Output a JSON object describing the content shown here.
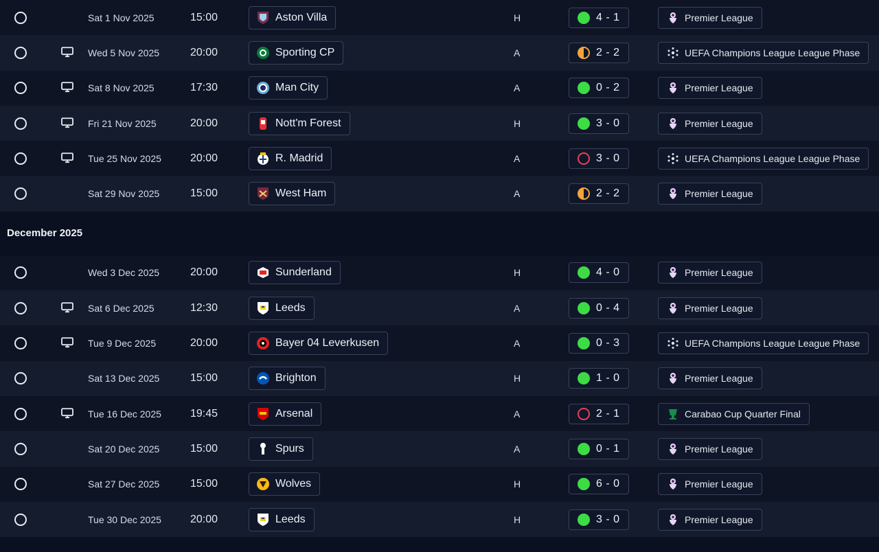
{
  "months": [
    {
      "title": ""
    },
    {
      "title": "December 2025"
    }
  ],
  "fixtures_nov": [
    {
      "tv": false,
      "date": "Sat 1 Nov 2025",
      "time": "15:00",
      "team": "Aston Villa",
      "crest": "villa",
      "venue": "H",
      "result": "win",
      "score": "4 - 1",
      "comp": "Premier League",
      "comp_icon": "pl"
    },
    {
      "tv": true,
      "date": "Wed 5 Nov 2025",
      "time": "20:00",
      "team": "Sporting CP",
      "crest": "sporting",
      "venue": "A",
      "result": "draw",
      "score": "2 - 2",
      "comp": "UEFA Champions League League Phase",
      "comp_icon": "ucl"
    },
    {
      "tv": true,
      "date": "Sat 8 Nov 2025",
      "time": "17:30",
      "team": "Man City",
      "crest": "city",
      "venue": "A",
      "result": "win",
      "score": "0 - 2",
      "comp": "Premier League",
      "comp_icon": "pl"
    },
    {
      "tv": true,
      "date": "Fri 21 Nov 2025",
      "time": "20:00",
      "team": "Nott'm Forest",
      "crest": "forest",
      "venue": "H",
      "result": "win",
      "score": "3 - 0",
      "comp": "Premier League",
      "comp_icon": "pl"
    },
    {
      "tv": true,
      "date": "Tue 25 Nov 2025",
      "time": "20:00",
      "team": "R. Madrid",
      "crest": "madrid",
      "venue": "A",
      "result": "loss",
      "score": "3 - 0",
      "comp": "UEFA Champions League League Phase",
      "comp_icon": "ucl"
    },
    {
      "tv": false,
      "date": "Sat 29 Nov 2025",
      "time": "15:00",
      "team": "West Ham",
      "crest": "westham",
      "venue": "A",
      "result": "draw",
      "score": "2 - 2",
      "comp": "Premier League",
      "comp_icon": "pl"
    }
  ],
  "fixtures_dec": [
    {
      "tv": false,
      "date": "Wed 3 Dec 2025",
      "time": "20:00",
      "team": "Sunderland",
      "crest": "sunderland",
      "venue": "H",
      "result": "win",
      "score": "4 - 0",
      "comp": "Premier League",
      "comp_icon": "pl"
    },
    {
      "tv": true,
      "date": "Sat 6 Dec 2025",
      "time": "12:30",
      "team": "Leeds",
      "crest": "leeds",
      "venue": "A",
      "result": "win",
      "score": "0 - 4",
      "comp": "Premier League",
      "comp_icon": "pl"
    },
    {
      "tv": true,
      "date": "Tue 9 Dec 2025",
      "time": "20:00",
      "team": "Bayer 04 Leverkusen",
      "crest": "leverkusen",
      "venue": "A",
      "result": "win",
      "score": "0 - 3",
      "comp": "UEFA Champions League League Phase",
      "comp_icon": "ucl"
    },
    {
      "tv": false,
      "date": "Sat 13 Dec 2025",
      "time": "15:00",
      "team": "Brighton",
      "crest": "brighton",
      "venue": "H",
      "result": "win",
      "score": "1 - 0",
      "comp": "Premier League",
      "comp_icon": "pl"
    },
    {
      "tv": true,
      "date": "Tue 16 Dec 2025",
      "time": "19:45",
      "team": "Arsenal",
      "crest": "arsenal",
      "venue": "A",
      "result": "loss",
      "score": "2 - 1",
      "comp": "Carabao Cup Quarter Final",
      "comp_icon": "carabao"
    },
    {
      "tv": false,
      "date": "Sat 20 Dec 2025",
      "time": "15:00",
      "team": "Spurs",
      "crest": "spurs",
      "venue": "A",
      "result": "win",
      "score": "0 - 1",
      "comp": "Premier League",
      "comp_icon": "pl"
    },
    {
      "tv": false,
      "date": "Sat 27 Dec 2025",
      "time": "15:00",
      "team": "Wolves",
      "crest": "wolves",
      "venue": "H",
      "result": "win",
      "score": "6 - 0",
      "comp": "Premier League",
      "comp_icon": "pl"
    },
    {
      "tv": false,
      "date": "Tue 30 Dec 2025",
      "time": "20:00",
      "team": "Leeds",
      "crest": "leeds",
      "venue": "H",
      "result": "win",
      "score": "3 - 0",
      "comp": "Premier League",
      "comp_icon": "pl"
    }
  ],
  "colors": {
    "win": "#3ddc45",
    "draw": "#f3a53a",
    "loss": "#e8424f",
    "row": "#0e1424",
    "row_alt": "#151c2e"
  }
}
